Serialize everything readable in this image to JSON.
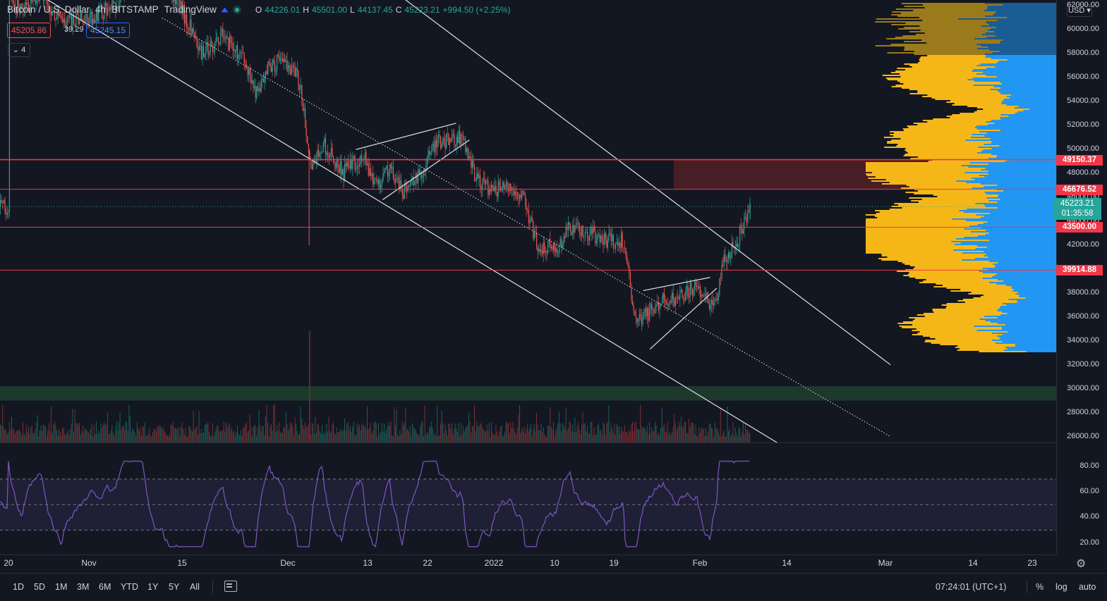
{
  "header": {
    "symbol": "Bitcoin / U.S. Dollar",
    "interval": "4h",
    "exchange": "BITSTAMP",
    "source": "TradingView",
    "ohlc": {
      "o_label": "O",
      "o": "44226.01",
      "h_label": "H",
      "h": "45501.00",
      "l_label": "L",
      "l": "44137.45",
      "c_label": "C",
      "c": "45223.21",
      "change": "+994.50 (+2.25%)"
    },
    "sell_price": "45205.86",
    "spread": "39.29",
    "buy_price": "45245.15",
    "indicator_count": "4",
    "collapse_icon": "chevron-down-icon"
  },
  "price_axis": {
    "currency": "USD",
    "labels": [
      "62000.00",
      "60000.00",
      "58000.00",
      "56000.00",
      "54000.00",
      "52000.00",
      "50000.00",
      "48000.00",
      "46000.00",
      "44000.00",
      "42000.00",
      "40000.00",
      "38000.00",
      "36000.00",
      "34000.00",
      "32000.00",
      "30000.00",
      "28000.00",
      "26000.00"
    ],
    "tags": [
      {
        "value": "49150.37",
        "color": "#f23645"
      },
      {
        "value": "46676.52",
        "color": "#f23645"
      },
      {
        "value": "43500.00",
        "color": "#f23645"
      },
      {
        "value": "39914.88",
        "color": "#f23645"
      }
    ],
    "current_price": "45223.21",
    "countdown": "01:35:58"
  },
  "rsi_axis": {
    "labels": [
      "80.00",
      "60.00",
      "40.00",
      "20.00"
    ]
  },
  "time_axis": {
    "labels": [
      "20",
      "Nov",
      "15",
      "Dec",
      "13",
      "22",
      "2022",
      "10",
      "19",
      "Feb",
      "14",
      "Mar",
      "14",
      "23"
    ]
  },
  "chart_data": {
    "type": "candlestick",
    "price_ylim": [
      25500,
      62500
    ],
    "horizontal_levels": [
      49150.37,
      46676.52,
      43500.0,
      39914.88
    ],
    "zones": [
      {
        "from": 29000,
        "to": 30200,
        "color": "#1e3b2c"
      },
      {
        "from": 46676.52,
        "to": 49150.37,
        "color": "#4a1f27"
      }
    ],
    "rsi_levels": [
      70,
      50,
      30
    ],
    "rsi_ylim": [
      12,
      92
    ],
    "close_path": [
      [
        "Oct 20",
        62500
      ],
      [
        "Oct 22",
        61500
      ],
      [
        "Oct 25",
        63000
      ],
      [
        "Oct 28",
        60500
      ],
      [
        "Nov 1",
        61000
      ],
      [
        "Nov 5",
        62000
      ],
      [
        "Nov 9",
        66500
      ],
      [
        "Nov 12",
        64500
      ],
      [
        "Nov 15",
        61500
      ],
      [
        "Nov 18",
        58000
      ],
      [
        "Nov 21",
        59500
      ],
      [
        "Nov 24",
        57500
      ],
      [
        "Nov 26",
        54500
      ],
      [
        "Nov 28",
        57000
      ],
      [
        "Nov 30",
        57500
      ],
      [
        "Dec 2",
        56500
      ],
      [
        "Dec 3",
        54000
      ],
      [
        "Dec 4",
        48500
      ],
      [
        "Dec 6",
        50500
      ],
      [
        "Dec 9",
        48000
      ],
      [
        "Dec 12",
        49500
      ],
      [
        "Dec 14",
        47000
      ],
      [
        "Dec 16",
        48500
      ],
      [
        "Dec 18",
        46500
      ],
      [
        "Dec 20",
        47500
      ],
      [
        "Dec 23",
        50500
      ],
      [
        "Dec 27",
        51000
      ],
      [
        "Dec 29",
        47500
      ],
      [
        "Dec 31",
        46500
      ],
      [
        "Jan 3",
        47000
      ],
      [
        "Jan 5",
        46000
      ],
      [
        "Jan 7",
        42000
      ],
      [
        "Jan 10",
        41800
      ],
      [
        "Jan 12",
        43500
      ],
      [
        "Jan 15",
        43000
      ],
      [
        "Jan 18",
        42300
      ],
      [
        "Jan 20",
        42500
      ],
      [
        "Jan 21",
        38500
      ],
      [
        "Jan 22",
        35500
      ],
      [
        "Jan 24",
        36500
      ],
      [
        "Jan 26",
        37500
      ],
      [
        "Jan 28",
        37500
      ],
      [
        "Jan 31",
        38500
      ],
      [
        "Feb 2",
        37000
      ],
      [
        "Feb 3",
        37500
      ],
      [
        "Feb 4",
        41000
      ],
      [
        "Feb 6",
        42300
      ],
      [
        "Feb 7",
        44000
      ],
      [
        "Feb 8",
        45223
      ]
    ],
    "drawings": [
      {
        "kind": "line",
        "from": [
          "Oct 20",
          64500
        ],
        "to": [
          "Feb 12",
          25500
        ],
        "style": "solid"
      },
      {
        "kind": "line",
        "from": [
          "Dec 3",
          69000
        ],
        "to": [
          "Mar 1",
          32000
        ],
        "style": "solid"
      },
      {
        "kind": "line",
        "from": [
          "Nov 12",
          61000
        ],
        "to": [
          "Mar 1",
          26000
        ],
        "style": "dotted"
      }
    ]
  },
  "toolbar": {
    "ranges": [
      "1D",
      "5D",
      "1M",
      "3M",
      "6M",
      "YTD",
      "1Y",
      "5Y",
      "All"
    ],
    "compare_icon": "calendar-range-icon",
    "clock": "07:24:01 (UTC+1)",
    "percent": "%",
    "log": "log",
    "auto": "auto",
    "settings_icon": "gear-icon"
  }
}
